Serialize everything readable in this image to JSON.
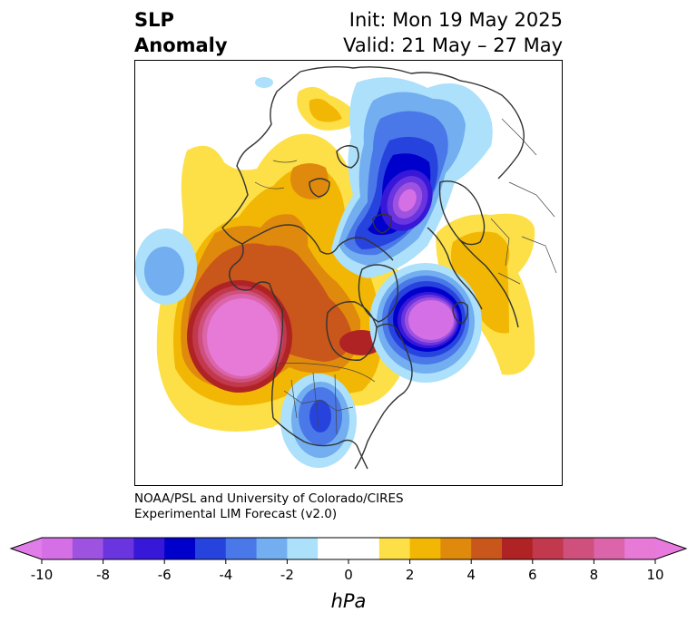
{
  "header": {
    "title_line1": "SLP",
    "title_line2": "Anomaly",
    "init_text": "Init: Mon 19 May 2025",
    "valid_text": "Valid: 21 May – 27 May"
  },
  "credit": {
    "line1": "NOAA/PSL and University of Colorado/CIRES",
    "line2": "Experimental LIM Forecast (v2.0)"
  },
  "colorbar": {
    "unit_label": "hPa",
    "tick_labels": [
      "-10",
      "-8",
      "-6",
      "-4",
      "-2",
      "0",
      "2",
      "4",
      "6",
      "8",
      "10"
    ],
    "under_color": "#e07de8",
    "over_color": "#e87ade",
    "bins": [
      {
        "from": -10,
        "to": -9,
        "color": "#d56fe6"
      },
      {
        "from": -9,
        "to": -8,
        "color": "#9e52e0"
      },
      {
        "from": -8,
        "to": -7,
        "color": "#6a34de"
      },
      {
        "from": -7,
        "to": -6,
        "color": "#3718d8"
      },
      {
        "from": -6,
        "to": -5,
        "color": "#0000cc"
      },
      {
        "from": -5,
        "to": -4,
        "color": "#2743de"
      },
      {
        "from": -4,
        "to": -3,
        "color": "#4a78e8"
      },
      {
        "from": -3,
        "to": -2,
        "color": "#72aef0"
      },
      {
        "from": -2,
        "to": -1,
        "color": "#ace0fb"
      },
      {
        "from": -1,
        "to": 1,
        "color": "#ffffff"
      },
      {
        "from": 1,
        "to": 2,
        "color": "#fde047"
      },
      {
        "from": 2,
        "to": 3,
        "color": "#f2b704"
      },
      {
        "from": 3,
        "to": 4,
        "color": "#df8a0c"
      },
      {
        "from": 4,
        "to": 5,
        "color": "#c9561a"
      },
      {
        "from": 5,
        "to": 6,
        "color": "#b02324"
      },
      {
        "from": 6,
        "to": 7,
        "color": "#c2384c"
      },
      {
        "from": 7,
        "to": 8,
        "color": "#cf507c"
      },
      {
        "from": 8,
        "to": 9,
        "color": "#db64ab"
      },
      {
        "from": 9,
        "to": 10,
        "color": "#e67ad6"
      }
    ]
  },
  "map": {
    "projection": "north-polar",
    "anomalies": [
      {
        "region": "northeast-pacific-gulf-of-alaska",
        "sign": "positive",
        "peak_hpa": 10
      },
      {
        "region": "northeast-north-america-hudson-bay",
        "sign": "positive",
        "peak_hpa": 6
      },
      {
        "region": "east-siberia",
        "sign": "positive",
        "peak_hpa": 4
      },
      {
        "region": "europe-scandinavia",
        "sign": "positive",
        "peak_hpa": 3
      },
      {
        "region": "arctic-ocean-svalbard",
        "sign": "negative",
        "peak_hpa": -10
      },
      {
        "region": "north-atlantic-iceland",
        "sign": "negative",
        "peak_hpa": -10
      },
      {
        "region": "western-north-pacific",
        "sign": "negative",
        "peak_hpa": -3
      },
      {
        "region": "southern-plains-usa",
        "sign": "negative",
        "peak_hpa": -5
      }
    ]
  }
}
